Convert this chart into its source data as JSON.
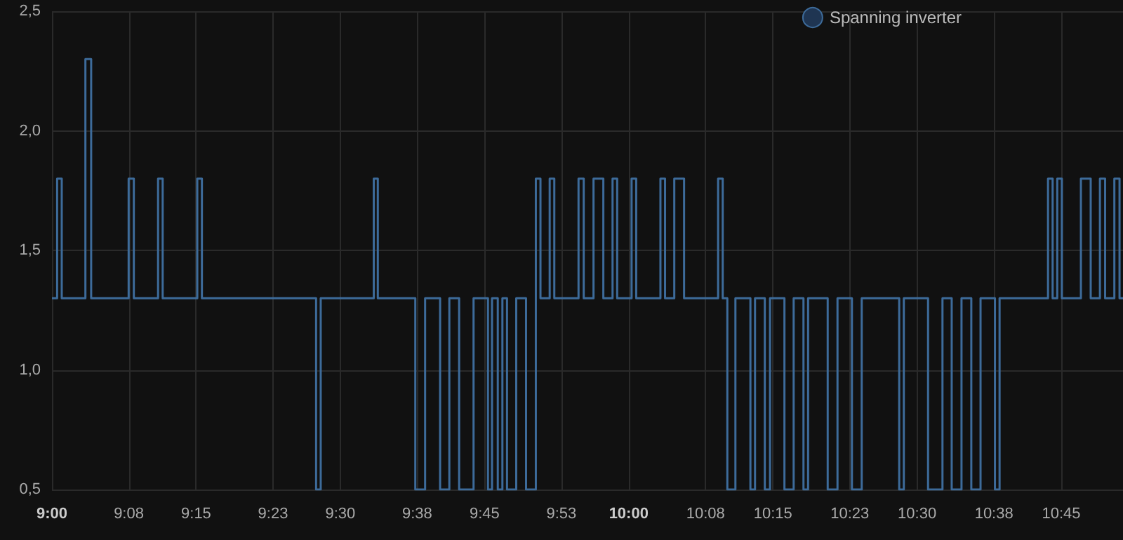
{
  "chart_data": {
    "type": "step",
    "legend": "top right",
    "grid": true,
    "marker": "none",
    "line_style": "solid",
    "xlim": [
      9,
      10.857
    ],
    "ylim": [
      0.5,
      2.5
    ],
    "xticks": [
      {
        "value": 9,
        "label": "9:00"
      },
      {
        "value": 9.1333,
        "label": "9:08"
      },
      {
        "value": 9.25,
        "label": "9:15"
      },
      {
        "value": 9.3833,
        "label": "9:23"
      },
      {
        "value": 9.5,
        "label": "9:30"
      },
      {
        "value": 9.6333,
        "label": "9:38"
      },
      {
        "value": 9.75,
        "label": "9:45"
      },
      {
        "value": 9.8833,
        "label": "9:53"
      },
      {
        "value": 10,
        "label": "10:00"
      },
      {
        "value": 10.1333,
        "label": "10:08"
      },
      {
        "value": 10.25,
        "label": "10:15"
      },
      {
        "value": 10.3833,
        "label": "10:23"
      },
      {
        "value": 10.5,
        "label": "10:30"
      },
      {
        "value": 10.6333,
        "label": "10:38"
      },
      {
        "value": 10.75,
        "label": "10:45"
      }
    ],
    "yticks": [
      {
        "value": 0.5,
        "label": "0,5"
      },
      {
        "value": 1,
        "label": "1,0"
      },
      {
        "value": 1.5,
        "label": "1,5"
      },
      {
        "value": 2,
        "label": "2,0"
      },
      {
        "value": 2.5,
        "label": "2,5"
      }
    ],
    "series": [
      {
        "name": "Spanning inverter",
        "color": "#3d6b9a",
        "x": [
          9,
          9.009,
          9.017,
          9.058,
          9.068,
          9.133,
          9.142,
          9.184,
          9.192,
          9.252,
          9.26,
          9.458,
          9.466,
          9.558,
          9.565,
          9.63,
          9.647,
          9.673,
          9.689,
          9.706,
          9.731,
          9.756,
          9.763,
          9.773,
          9.781,
          9.789,
          9.805,
          9.822,
          9.839,
          9.847,
          9.863,
          9.871,
          9.913,
          9.922,
          9.939,
          9.956,
          9.972,
          9.98,
          10.005,
          10.013,
          10.055,
          10.063,
          10.079,
          10.096,
          10.155,
          10.163,
          10.171,
          10.185,
          10.211,
          10.219,
          10.236,
          10.245,
          10.27,
          10.286,
          10.303,
          10.311,
          10.345,
          10.362,
          10.387,
          10.404,
          10.469,
          10.477,
          10.519,
          10.544,
          10.56,
          10.577,
          10.594,
          10.61,
          10.635,
          10.643,
          10.727,
          10.735,
          10.743,
          10.751,
          10.784,
          10.801,
          10.817,
          10.826,
          10.842,
          10.851,
          10.857
        ],
        "values": [
          1.3,
          1.8,
          1.3,
          2.3,
          1.3,
          1.8,
          1.3,
          1.8,
          1.3,
          1.8,
          1.3,
          0.5,
          1.3,
          1.8,
          1.3,
          0.5,
          1.3,
          0.5,
          1.3,
          0.5,
          1.3,
          0.5,
          1.3,
          0.5,
          1.3,
          0.5,
          1.3,
          0.5,
          1.8,
          1.3,
          1.8,
          1.3,
          1.8,
          1.3,
          1.8,
          1.3,
          1.8,
          1.3,
          1.8,
          1.3,
          1.8,
          1.3,
          1.8,
          1.3,
          1.8,
          1.3,
          0.5,
          1.3,
          0.5,
          1.3,
          0.5,
          1.3,
          0.5,
          1.3,
          0.5,
          1.3,
          0.5,
          1.3,
          0.5,
          1.3,
          0.5,
          1.3,
          0.5,
          1.3,
          0.5,
          1.3,
          0.5,
          1.3,
          0.5,
          1.3,
          1.8,
          1.3,
          1.8,
          1.3,
          1.8,
          1.3,
          1.8,
          1.3,
          1.8,
          1.3,
          1.3
        ]
      }
    ]
  }
}
